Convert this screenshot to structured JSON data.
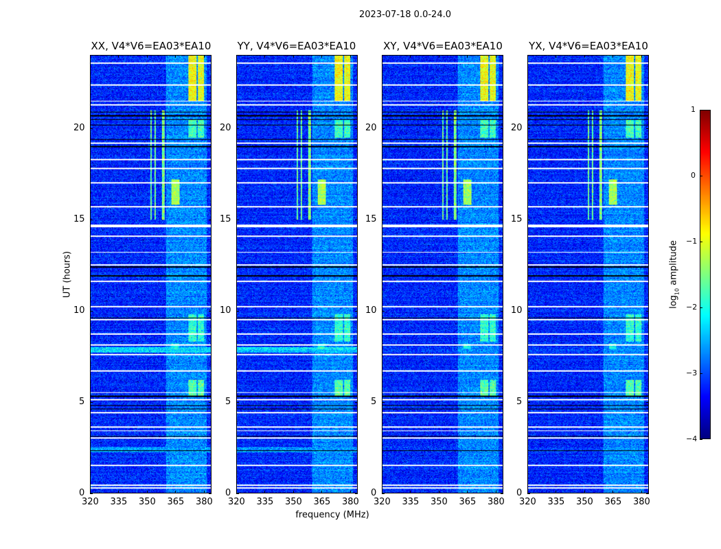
{
  "chart_data": {
    "type": "heatmap",
    "title": "2023-07-18 0.0-24.0",
    "xlabel": "frequency (MHz)",
    "ylabel": "UT (hours)",
    "xlim": [
      320,
      384
    ],
    "ylim": [
      0,
      24
    ],
    "xticks": [
      "320",
      "335",
      "350",
      "365",
      "380"
    ],
    "xtick_values": [
      320,
      335,
      350,
      365,
      380
    ],
    "yticks": [
      "0",
      "5",
      "10",
      "15",
      "20"
    ],
    "ytick_values": [
      0,
      5,
      10,
      15,
      20
    ],
    "panels": [
      {
        "title": "XX, V4*V6=EA03*EA10"
      },
      {
        "title": "YY, V4*V6=EA03*EA10"
      },
      {
        "title": "XY, V4*V6=EA03*EA10"
      },
      {
        "title": "YX, V4*V6=EA03*EA10"
      }
    ],
    "colorbar": {
      "label_main": "log",
      "label_sub": "10",
      "label_rest": " amplitude",
      "range": [
        -4,
        1
      ],
      "ticks": [
        "1",
        "0",
        "−1",
        "−2",
        "−3",
        "−4"
      ],
      "tick_values": [
        1,
        0,
        -1,
        -2,
        -3,
        -4
      ],
      "colormap": "jet"
    },
    "background_level": -3.2,
    "flagged_hours_white": [
      0.25,
      0.4,
      1.5,
      3.0,
      3.4,
      3.6,
      4.4,
      5.1,
      5.5,
      6.7,
      7.6,
      8.1,
      8.7,
      9.5,
      10.2,
      11.6,
      12.5,
      13.2,
      14.1,
      14.6,
      14.7,
      15.7,
      17.0,
      17.8,
      18.3,
      19.2,
      21.3,
      21.5,
      22.4,
      23.6
    ],
    "flagged_hours_black": [
      2.3,
      3.1,
      4.6,
      4.8,
      5.3,
      9.6,
      11.9,
      12.4,
      19.0,
      19.4,
      20.2,
      20.5,
      20.7,
      20.9
    ],
    "features": [
      {
        "freq": [
          372,
          376.5
        ],
        "hours": [
          21.5,
          24
        ],
        "level": -0.9
      },
      {
        "freq": [
          377,
          380.5
        ],
        "hours": [
          21.5,
          24
        ],
        "level": -0.95
      },
      {
        "freq": [
          363,
          367.5
        ],
        "hours": [
          15.8,
          17.2
        ],
        "level": -1.3
      },
      {
        "freq": [
          372,
          376.5
        ],
        "hours": [
          5.3,
          6.2
        ],
        "level": -1.7
      },
      {
        "freq": [
          377,
          380.5
        ],
        "hours": [
          5.3,
          6.2
        ],
        "level": -1.7
      },
      {
        "freq": [
          372,
          376.5
        ],
        "hours": [
          8.3,
          9.8
        ],
        "level": -1.9
      },
      {
        "freq": [
          377,
          380.5
        ],
        "hours": [
          8.3,
          9.8
        ],
        "level": -1.9
      },
      {
        "freq": [
          372,
          376.5
        ],
        "hours": [
          19.5,
          20.5
        ],
        "level": -1.8
      },
      {
        "freq": [
          377,
          380.5
        ],
        "hours": [
          19.5,
          20.5
        ],
        "level": -1.8
      },
      {
        "freq": [
          363,
          367
        ],
        "hours": [
          7.9,
          8.2
        ],
        "level": -2.0
      },
      {
        "freq": [
          352,
          352.6
        ],
        "hours": [
          15,
          21
        ],
        "level": -1.6
      },
      {
        "freq": [
          354,
          354.6
        ],
        "hours": [
          15,
          21
        ],
        "level": -1.6
      },
      {
        "freq": [
          358,
          359.5
        ],
        "hours": [
          15,
          21
        ],
        "level": -1.5
      },
      {
        "freq": [
          360,
          382
        ],
        "hours": [
          0,
          24
        ],
        "level": -2.7
      },
      {
        "freq": [
          320,
          384
        ],
        "hours": [
          7.7,
          8.0
        ],
        "level": -2.3
      },
      {
        "freq": [
          320,
          384
        ],
        "hours": [
          2.2,
          2.5
        ],
        "level": -2.6
      }
    ]
  }
}
